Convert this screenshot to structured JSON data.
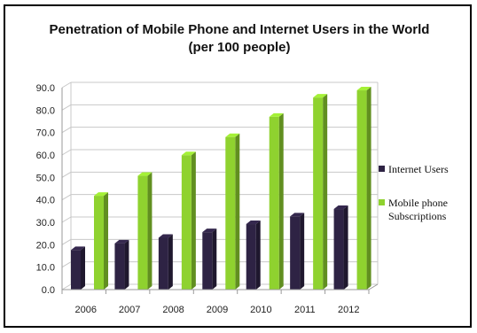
{
  "chart_data": {
    "type": "bar",
    "title": "Penetration of Mobile Phone and Internet Users in the World",
    "subtitle": "(per 100 people)",
    "categories": [
      "2006",
      "2007",
      "2008",
      "2009",
      "2010",
      "2011",
      "2012"
    ],
    "series": [
      {
        "name": "Internet Users",
        "values": [
          17.6,
          20.6,
          23.1,
          25.6,
          29.2,
          32.6,
          35.9
        ],
        "color": "#2e2344"
      },
      {
        "name": "Mobile phone Subscriptions",
        "values": [
          41.8,
          50.7,
          59.9,
          68.0,
          77.0,
          85.6,
          88.8
        ],
        "color": "#8fd22f"
      }
    ],
    "ylim": [
      0,
      90
    ],
    "yticks": [
      "0.0",
      "10.0",
      "20.0",
      "30.0",
      "40.0",
      "50.0",
      "60.0",
      "70.0",
      "80.0",
      "90.0"
    ],
    "legend": {
      "position": "right",
      "entries": [
        "Internet Users",
        [
          "Mobile phone",
          "Subscriptions"
        ]
      ]
    },
    "grid": true
  }
}
